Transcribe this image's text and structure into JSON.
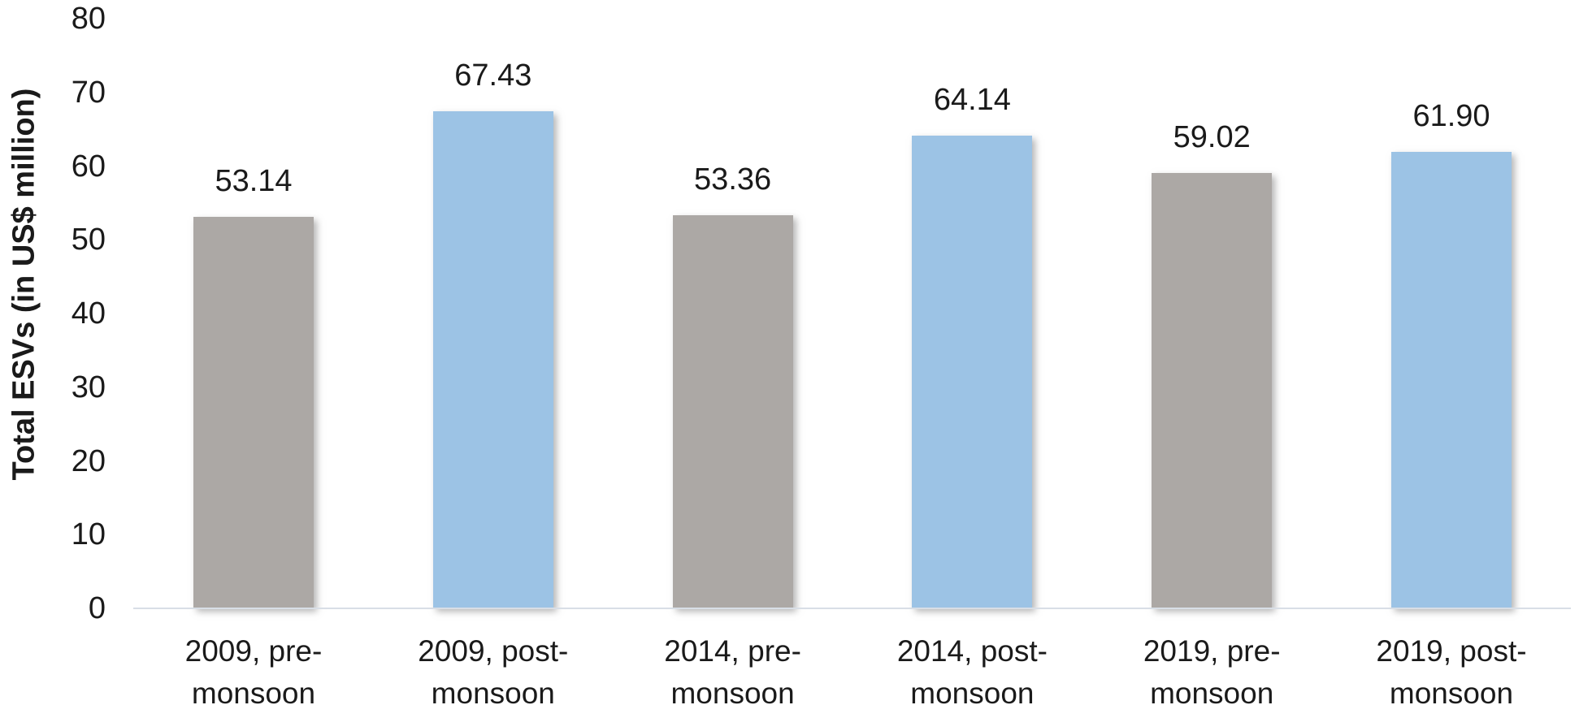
{
  "chart_data": {
    "type": "bar",
    "title": "",
    "xlabel": "",
    "ylabel": "Total ESVs (in US$ million)",
    "ylim": [
      0,
      80
    ],
    "yticks": [
      0,
      10,
      20,
      30,
      40,
      50,
      60,
      70,
      80
    ],
    "grid": false,
    "legend_position": "none",
    "categories": [
      "2009, pre-monsoon",
      "2009, post-monsoon",
      "2014, pre-monsoon",
      "2014, post-monsoon",
      "2019, pre-monsoon",
      "2019, post-monsoon"
    ],
    "category_lines": [
      [
        "2009, pre-",
        "monsoon"
      ],
      [
        "2009, post-",
        "monsoon"
      ],
      [
        "2014, pre-",
        "monsoon"
      ],
      [
        "2014, post-",
        "monsoon"
      ],
      [
        "2019, pre-",
        "monsoon"
      ],
      [
        "2019, post-",
        "monsoon"
      ]
    ],
    "bars": [
      {
        "category": "2009, pre-monsoon",
        "series": "pre-monsoon",
        "value": 53.14,
        "label": "53.14",
        "color": "#aca8a5"
      },
      {
        "category": "2009, post-monsoon",
        "series": "post-monsoon",
        "value": 67.43,
        "label": "67.43",
        "color": "#9cc3e5"
      },
      {
        "category": "2014, pre-monsoon",
        "series": "pre-monsoon",
        "value": 53.36,
        "label": "53.36",
        "color": "#aca8a5"
      },
      {
        "category": "2014, post-monsoon",
        "series": "post-monsoon",
        "value": 64.14,
        "label": "64.14",
        "color": "#9cc3e5"
      },
      {
        "category": "2019, pre-monsoon",
        "series": "pre-monsoon",
        "value": 59.02,
        "label": "59.02",
        "color": "#aca8a5"
      },
      {
        "category": "2019, post-monsoon",
        "series": "post-monsoon",
        "value": 61.9,
        "label": "61.90",
        "color": "#9cc3e5"
      }
    ],
    "colors": {
      "pre_monsoon_bar": "#aca8a5",
      "post_monsoon_bar": "#9cc3e5",
      "axis_line": "#d8dee6",
      "text": "#1a1a1a",
      "background": "#ffffff"
    }
  }
}
